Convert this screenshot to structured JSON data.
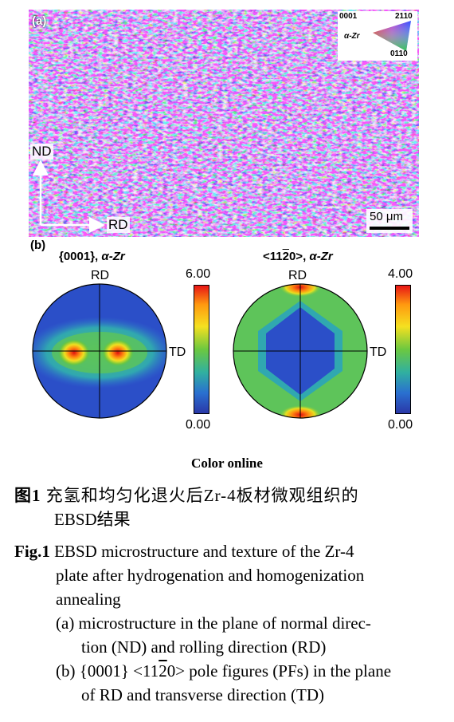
{
  "panel_a": {
    "label": "(a)",
    "axis_nd": "ND",
    "axis_rd": "RD",
    "scale_bar": "50 μm",
    "ipf_key": {
      "phase": "α-Zr",
      "corner_0001": "0001",
      "corner_2110": "2110",
      "corner_0110": "0110"
    }
  },
  "panel_b": {
    "label": "(b)",
    "pf1": {
      "title_plane": "{0001}",
      "title_phase": "α-Zr",
      "rd": "RD",
      "td": "TD",
      "max": "6.00",
      "min": "0.00"
    },
    "pf2": {
      "title_pre": "<11",
      "title_bar": "2",
      "title_post": "0>",
      "title_phase": "α-Zr",
      "rd": "RD",
      "td": "TD",
      "max": "4.00",
      "min": "0.00"
    }
  },
  "color_online": "Color online",
  "caption": {
    "cn_label": "图1",
    "cn_text_1": "充氢和均匀化退火后Zr-4板材微观组织的",
    "cn_text_2": "EBSD结果",
    "en_label": "Fig.1",
    "en_text_1": "EBSD microstructure and texture of the Zr-4",
    "en_text_2": "plate after hydrogenation and homogenization",
    "en_text_3": "annealing",
    "a_1": "(a) microstructure in the plane of normal direc-",
    "a_2": "tion (ND) and rolling direction (RD)",
    "b_1_pre": "(b) {0001} <11",
    "b_1_bar": "2",
    "b_1_post": "0> pole figures (PFs) in the plane",
    "b_2": "of RD and transverse direction (TD)"
  }
}
